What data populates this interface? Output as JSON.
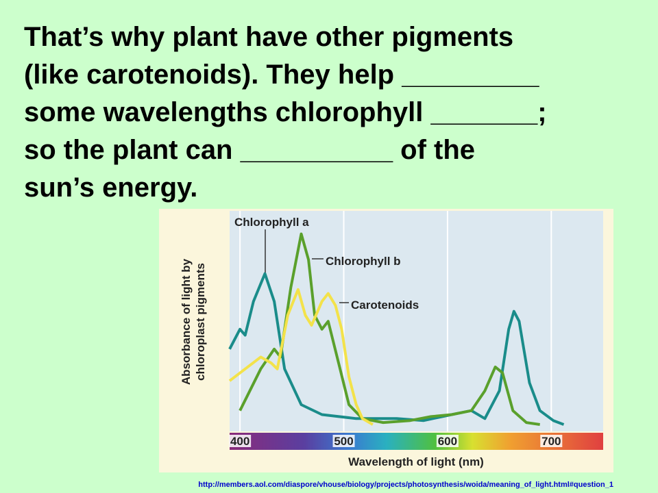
{
  "slide": {
    "lines": [
      "That’s why plant have other pigments",
      "(like carotenoids). They help _________",
      "some wavelengths chlorophyll _______;",
      "so the plant can __________ of the",
      "sun’s energy."
    ],
    "source": "http://members.aol.com/diaspore/vhouse/biology/projects/photosynthesis/woida/meaning_of_light.html#question_1"
  },
  "chart_data": {
    "type": "line",
    "xlabel": "Wavelength of light (nm)",
    "ylabel": [
      "Absorbance of light by",
      "chloroplast pigments"
    ],
    "xlim": [
      390,
      750
    ],
    "ylim": [
      0,
      1
    ],
    "xticks": [
      400,
      500,
      600,
      700
    ],
    "grid": true,
    "series": [
      {
        "name": "Chlorophyll a",
        "color": "#1a8c8a",
        "x": [
          390,
          400,
          405,
          413,
          424,
          433,
          443,
          459,
          479,
          512,
          551,
          577,
          604,
          623,
          636,
          650,
          659,
          664,
          669,
          679,
          689,
          702,
          712
        ],
        "values": [
          0.38,
          0.48,
          0.45,
          0.62,
          0.76,
          0.62,
          0.28,
          0.1,
          0.05,
          0.03,
          0.03,
          0.02,
          0.05,
          0.07,
          0.03,
          0.17,
          0.48,
          0.57,
          0.52,
          0.21,
          0.07,
          0.02,
          0
        ]
      },
      {
        "name": "Chlorophyll b",
        "color": "#5aa02c",
        "x": [
          400,
          420,
          433,
          439,
          449,
          459,
          466,
          472,
          479,
          485,
          495,
          505,
          518,
          538,
          564,
          584,
          604,
          623,
          636,
          646,
          653,
          663,
          676,
          689
        ],
        "values": [
          0.07,
          0.28,
          0.38,
          0.34,
          0.69,
          0.96,
          0.83,
          0.55,
          0.48,
          0.52,
          0.31,
          0.1,
          0.03,
          0.01,
          0.02,
          0.04,
          0.05,
          0.07,
          0.17,
          0.29,
          0.26,
          0.07,
          0.01,
          0
        ]
      },
      {
        "name": "Carotenoids",
        "color": "#f3e24a",
        "x": [
          390,
          420,
          430,
          436,
          446,
          456,
          463,
          469,
          479,
          485,
          492,
          498,
          505,
          512,
          518,
          528
        ],
        "values": [
          0.22,
          0.34,
          0.31,
          0.28,
          0.55,
          0.68,
          0.55,
          0.5,
          0.62,
          0.66,
          0.6,
          0.48,
          0.24,
          0.1,
          0.03,
          0
        ]
      }
    ]
  }
}
